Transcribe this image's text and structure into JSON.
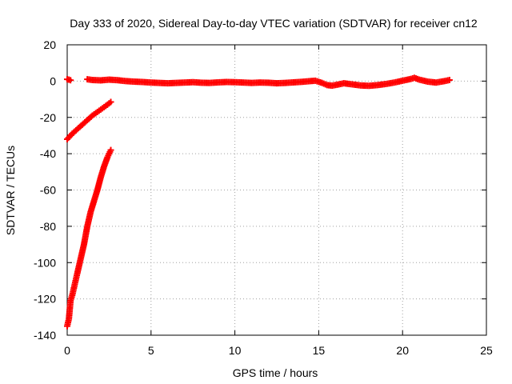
{
  "chart_data": {
    "type": "scatter",
    "title": "Day 333 of 2020, Sidereal Day-to-day VTEC variation (SDTVAR) for receiver cn12",
    "xlabel": "GPS time / hours",
    "ylabel": "SDTVAR / TECUs",
    "xlim": [
      0,
      25
    ],
    "ylim": [
      -140,
      20
    ],
    "xticks": [
      0,
      5,
      10,
      15,
      20,
      25
    ],
    "yticks": [
      20,
      0,
      -20,
      -40,
      -60,
      -80,
      -100,
      -120,
      -140
    ],
    "grid": true,
    "legend": "none",
    "marker_color": "#ff0000",
    "series": [
      {
        "values": [
          [
            0.0,
            1.0
          ],
          [
            0.1,
            0.8
          ],
          [
            0.2,
            0.5
          ]
        ]
      },
      {
        "values": [
          [
            1.2,
            1.0
          ],
          [
            1.5,
            0.6
          ],
          [
            2.0,
            0.4
          ],
          [
            2.5,
            0.8
          ],
          [
            3.0,
            0.5
          ],
          [
            3.5,
            0.0
          ],
          [
            4.0,
            -0.3
          ],
          [
            4.5,
            -0.5
          ],
          [
            5.0,
            -0.8
          ],
          [
            5.5,
            -1.0
          ],
          [
            6.0,
            -1.2
          ],
          [
            6.5,
            -1.0
          ],
          [
            7.0,
            -0.8
          ],
          [
            7.5,
            -0.6
          ],
          [
            8.0,
            -0.9
          ],
          [
            8.5,
            -1.0
          ],
          [
            9.0,
            -0.7
          ],
          [
            9.5,
            -0.5
          ],
          [
            10.0,
            -0.6
          ],
          [
            10.5,
            -0.8
          ],
          [
            11.0,
            -1.0
          ],
          [
            11.5,
            -0.8
          ],
          [
            12.0,
            -0.9
          ],
          [
            12.5,
            -1.2
          ],
          [
            13.0,
            -1.0
          ],
          [
            13.5,
            -0.7
          ],
          [
            14.0,
            -0.4
          ],
          [
            14.5,
            0.0
          ],
          [
            14.8,
            0.2
          ],
          [
            15.2,
            -1.0
          ],
          [
            15.5,
            -2.2
          ],
          [
            15.8,
            -2.5
          ],
          [
            16.2,
            -1.8
          ],
          [
            16.5,
            -1.2
          ],
          [
            17.0,
            -1.8
          ],
          [
            17.5,
            -2.4
          ],
          [
            18.0,
            -2.6
          ],
          [
            18.5,
            -2.2
          ],
          [
            19.0,
            -1.6
          ],
          [
            19.5,
            -0.8
          ],
          [
            20.0,
            0.2
          ],
          [
            20.5,
            1.2
          ],
          [
            20.7,
            1.8
          ],
          [
            21.0,
            0.8
          ],
          [
            21.5,
            -0.3
          ],
          [
            22.0,
            -0.8
          ],
          [
            22.5,
            0.0
          ],
          [
            22.8,
            0.6
          ]
        ]
      },
      {
        "values": [
          [
            0.0,
            -32.0
          ],
          [
            0.3,
            -29.0
          ],
          [
            0.6,
            -26.5
          ],
          [
            0.9,
            -24.0
          ],
          [
            1.2,
            -21.5
          ],
          [
            1.5,
            -19.0
          ],
          [
            1.8,
            -17.0
          ],
          [
            2.1,
            -15.0
          ],
          [
            2.4,
            -13.0
          ],
          [
            2.6,
            -11.5
          ]
        ]
      },
      {
        "values": [
          [
            0.0,
            -135.0
          ],
          [
            0.1,
            -131.0
          ],
          [
            0.15,
            -126.0
          ],
          [
            0.2,
            -121.0
          ],
          [
            0.3,
            -118.0
          ],
          [
            0.45,
            -112.0
          ],
          [
            0.6,
            -106.0
          ],
          [
            0.8,
            -98.0
          ],
          [
            1.0,
            -90.0
          ],
          [
            1.2,
            -80.0
          ],
          [
            1.4,
            -72.0
          ],
          [
            1.6,
            -66.0
          ],
          [
            1.8,
            -60.0
          ],
          [
            2.0,
            -53.0
          ],
          [
            2.2,
            -47.0
          ],
          [
            2.4,
            -42.0
          ],
          [
            2.6,
            -38.0
          ]
        ]
      }
    ]
  }
}
